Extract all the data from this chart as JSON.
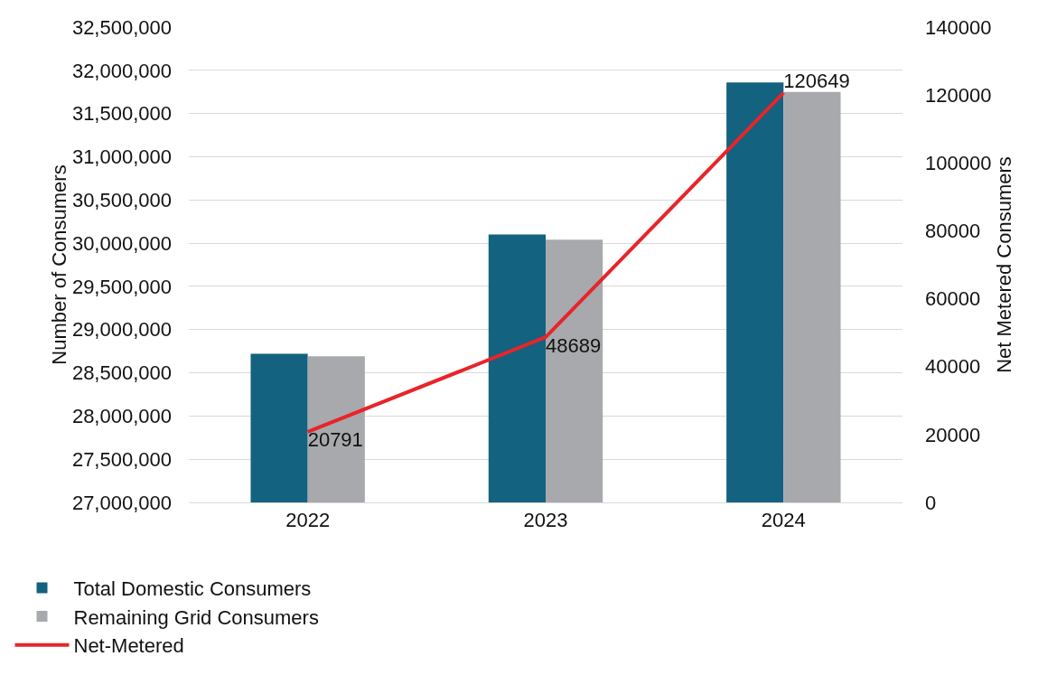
{
  "chart_data": {
    "type": "bar",
    "ylabel": "Number of Consumers",
    "y2label": "Net Metered Consumers",
    "categories": [
      "2022",
      "2023",
      "2024"
    ],
    "series": [
      {
        "name": "Total Domestic Consumers",
        "color": "#13627f",
        "values": [
          28720000,
          30100000,
          31860000
        ]
      },
      {
        "name": "Remaining Grid Consumers",
        "color": "#a7a9ac",
        "values": [
          28690000,
          30040000,
          31750000
        ]
      },
      {
        "name": "Net-Metered",
        "type": "line",
        "axis": "y2",
        "color": "#e8242a",
        "values": [
          20791,
          48689,
          120649
        ],
        "value_labels": [
          "20791",
          "48689",
          "120649"
        ]
      }
    ],
    "ylim": [
      27000000,
      32500000
    ],
    "yticks": [
      {
        "value": 27000000,
        "label": "27,000,000"
      },
      {
        "value": 27500000,
        "label": "27,500,000"
      },
      {
        "value": 28000000,
        "label": "28,000,000"
      },
      {
        "value": 28500000,
        "label": "28,500,000"
      },
      {
        "value": 29000000,
        "label": "29,000,000"
      },
      {
        "value": 29500000,
        "label": "29,500,000"
      },
      {
        "value": 30000000,
        "label": "30,000,000"
      },
      {
        "value": 30500000,
        "label": "30,500,000"
      },
      {
        "value": 31000000,
        "label": "31,000,000"
      },
      {
        "value": 31500000,
        "label": "31,500,000"
      },
      {
        "value": 32000000,
        "label": "32,000,000"
      },
      {
        "value": 32500000,
        "label": "32,500,000"
      }
    ],
    "y2lim": [
      0,
      140000
    ],
    "y2ticks": [
      0,
      20000,
      40000,
      60000,
      80000,
      100000,
      120000,
      140000
    ],
    "grid": "y",
    "legend": "bottom",
    "line_style": "solid",
    "marker": "none"
  }
}
